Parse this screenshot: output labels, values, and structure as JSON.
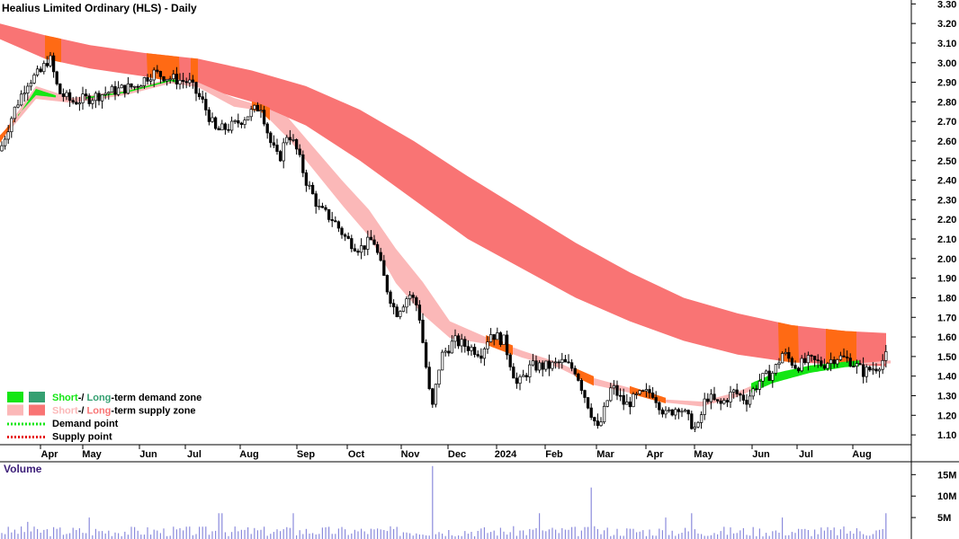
{
  "chart_data": {
    "type": "candlestick",
    "title": "Healius Limited Ordinary (HLS) - Daily",
    "price_axis": {
      "ylim": [
        1.05,
        3.32
      ],
      "ticks": [
        "3.30",
        "3.20",
        "3.10",
        "3.00",
        "2.90",
        "2.80",
        "2.70",
        "2.60",
        "2.50",
        "2.40",
        "2.30",
        "2.20",
        "2.10",
        "2.00",
        "1.90",
        "1.80",
        "1.70",
        "1.60",
        "1.50",
        "1.40",
        "1.30",
        "1.20",
        "1.10"
      ]
    },
    "x_axis": {
      "labels": [
        "Apr",
        "May",
        "Jun",
        "Jul",
        "Aug",
        "Sep",
        "Oct",
        "Nov",
        "Dec",
        "2024",
        "Feb",
        "Mar",
        "Apr",
        "May",
        "Jun",
        "Jul",
        "Aug"
      ]
    },
    "volume_panel": {
      "title": "Volume",
      "ylim": [
        0,
        18
      ],
      "ticks": [
        "15M",
        "10M",
        "5M"
      ]
    },
    "price_path": [
      [
        0,
        2.55
      ],
      [
        15,
        2.75
      ],
      [
        30,
        2.9
      ],
      [
        45,
        2.95
      ],
      [
        55,
        3.03
      ],
      [
        65,
        2.85
      ],
      [
        80,
        2.8
      ],
      [
        100,
        2.82
      ],
      [
        120,
        2.85
      ],
      [
        150,
        2.88
      ],
      [
        170,
        2.95
      ],
      [
        190,
        2.92
      ],
      [
        210,
        2.9
      ],
      [
        225,
        2.8
      ],
      [
        240,
        2.65
      ],
      [
        260,
        2.68
      ],
      [
        280,
        2.75
      ],
      [
        290,
        2.78
      ],
      [
        300,
        2.6
      ],
      [
        310,
        2.5
      ],
      [
        320,
        2.65
      ],
      [
        330,
        2.55
      ],
      [
        340,
        2.4
      ],
      [
        355,
        2.25
      ],
      [
        370,
        2.2
      ],
      [
        385,
        2.1
      ],
      [
        400,
        2.05
      ],
      [
        415,
        2.1
      ],
      [
        430,
        1.85
      ],
      [
        440,
        1.72
      ],
      [
        455,
        1.82
      ],
      [
        465,
        1.75
      ],
      [
        480,
        1.22
      ],
      [
        490,
        1.5
      ],
      [
        505,
        1.58
      ],
      [
        520,
        1.55
      ],
      [
        535,
        1.52
      ],
      [
        545,
        1.62
      ],
      [
        560,
        1.58
      ],
      [
        575,
        1.35
      ],
      [
        590,
        1.45
      ],
      [
        610,
        1.45
      ],
      [
        625,
        1.47
      ],
      [
        640,
        1.43
      ],
      [
        650,
        1.3
      ],
      [
        665,
        1.12
      ],
      [
        680,
        1.35
      ],
      [
        695,
        1.25
      ],
      [
        710,
        1.3
      ],
      [
        725,
        1.32
      ],
      [
        740,
        1.2
      ],
      [
        755,
        1.25
      ],
      [
        765,
        1.18
      ],
      [
        775,
        1.12
      ],
      [
        785,
        1.3
      ],
      [
        800,
        1.25
      ],
      [
        815,
        1.32
      ],
      [
        830,
        1.28
      ],
      [
        845,
        1.38
      ],
      [
        860,
        1.42
      ],
      [
        870,
        1.52
      ],
      [
        885,
        1.45
      ],
      [
        900,
        1.48
      ],
      [
        915,
        1.46
      ],
      [
        930,
        1.5
      ],
      [
        945,
        1.48
      ],
      [
        960,
        1.42
      ],
      [
        975,
        1.45
      ],
      [
        985,
        1.5
      ],
      [
        988,
        1.7
      ]
    ],
    "short_term_band": [
      [
        0,
        2.6,
        2.62
      ],
      [
        40,
        2.88,
        2.82
      ],
      [
        80,
        2.82,
        2.8
      ],
      [
        140,
        2.86,
        2.84
      ],
      [
        190,
        2.92,
        2.9
      ],
      [
        220,
        2.88,
        2.9
      ],
      [
        260,
        2.78,
        2.82
      ],
      [
        290,
        2.76,
        2.78
      ],
      [
        320,
        2.62,
        2.72
      ],
      [
        350,
        2.45,
        2.56
      ],
      [
        380,
        2.28,
        2.4
      ],
      [
        410,
        2.12,
        2.25
      ],
      [
        440,
        1.88,
        2.05
      ],
      [
        470,
        1.72,
        1.88
      ],
      [
        500,
        1.6,
        1.68
      ],
      [
        540,
        1.57,
        1.6
      ],
      [
        580,
        1.5,
        1.53
      ],
      [
        620,
        1.45,
        1.47
      ],
      [
        660,
        1.36,
        1.39
      ],
      [
        700,
        1.32,
        1.34
      ],
      [
        740,
        1.27,
        1.28
      ],
      [
        780,
        1.25,
        1.27
      ],
      [
        820,
        1.3,
        1.32
      ],
      [
        860,
        1.38,
        1.4
      ],
      [
        900,
        1.43,
        1.44
      ],
      [
        940,
        1.46,
        1.46
      ],
      [
        990,
        1.47,
        1.48
      ]
    ],
    "long_term_band": [
      [
        0,
        3.12,
        3.2
      ],
      [
        50,
        3.02,
        3.14
      ],
      [
        100,
        2.97,
        3.09
      ],
      [
        160,
        2.93,
        3.05
      ],
      [
        220,
        2.88,
        3.02
      ],
      [
        280,
        2.8,
        2.96
      ],
      [
        340,
        2.68,
        2.88
      ],
      [
        400,
        2.5,
        2.76
      ],
      [
        460,
        2.3,
        2.6
      ],
      [
        520,
        2.1,
        2.42
      ],
      [
        580,
        1.95,
        2.25
      ],
      [
        640,
        1.8,
        2.08
      ],
      [
        700,
        1.68,
        1.93
      ],
      [
        760,
        1.58,
        1.8
      ],
      [
        820,
        1.51,
        1.72
      ],
      [
        880,
        1.47,
        1.66
      ],
      [
        940,
        1.46,
        1.63
      ],
      [
        985,
        1.45,
        1.62
      ]
    ],
    "supply_zones": [
      [
        50,
        68
      ],
      [
        163,
        200
      ],
      [
        212,
        220
      ],
      [
        865,
        888
      ],
      [
        918,
        952
      ]
    ],
    "demand_zones": [
      [
        20,
        62
      ],
      [
        95,
        195
      ],
      [
        835,
        955
      ]
    ],
    "volume_spikes": [
      [
        480,
        17
      ],
      [
        657,
        12
      ],
      [
        600,
        6
      ],
      [
        770,
        6
      ],
      [
        985,
        6
      ],
      [
        325,
        6
      ],
      [
        245,
        6
      ],
      [
        100,
        5
      ],
      [
        30,
        4
      ],
      [
        740,
        5
      ],
      [
        870,
        5
      ]
    ]
  },
  "legend": [
    {
      "swatches": [
        "#14e614",
        "#35a071"
      ],
      "parts": [
        {
          "t": "Short",
          "c": "#14e614"
        },
        {
          "t": "-/ ",
          "c": "#000000"
        },
        {
          "t": "Long",
          "c": "#35a071"
        },
        {
          "t": "-term demand zone",
          "c": "#000000"
        }
      ]
    },
    {
      "swatches": [
        "#fbb8b8",
        "#f97474"
      ],
      "parts": [
        {
          "t": "Short",
          "c": "#fbb8b8"
        },
        {
          "t": "-/ ",
          "c": "#000000"
        },
        {
          "t": "Long",
          "c": "#f97474"
        },
        {
          "t": "-term supply zone",
          "c": "#000000"
        }
      ]
    },
    {
      "line_color": "#14e614",
      "parts": [
        {
          "t": "Demand point",
          "c": "#000000"
        }
      ]
    },
    {
      "line_color": "#e61414",
      "parts": [
        {
          "t": "Supply point",
          "c": "#000000"
        }
      ]
    }
  ],
  "colors": {
    "long_band": "#f97474",
    "short_band": "#fbb8b8",
    "demand_short": "#14e614",
    "supply_orange": "#ff6a14",
    "candle": "#000000",
    "volume": "#8b8bdc",
    "volume_title": "#3c1e78"
  }
}
